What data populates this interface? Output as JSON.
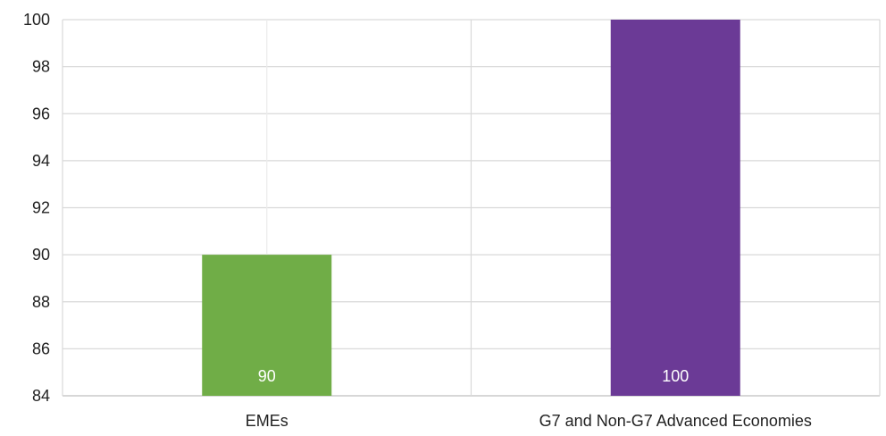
{
  "chart_data": {
    "type": "bar",
    "title": "",
    "xlabel": "",
    "ylabel": "",
    "categories": [
      "EMEs",
      "G7 and Non-G7 Advanced Economies"
    ],
    "values": [
      90,
      100
    ],
    "data_labels": [
      "90",
      "100"
    ],
    "colors": [
      "#70ad47",
      "#6b3a96"
    ],
    "ylim": [
      84,
      100
    ],
    "yticks": [
      84,
      86,
      88,
      90,
      92,
      94,
      96,
      98,
      100
    ],
    "ytick_labels": [
      "84",
      "86",
      "88",
      "90",
      "92",
      "94",
      "96",
      "98",
      "100"
    ],
    "grid": true,
    "legend": "none"
  }
}
